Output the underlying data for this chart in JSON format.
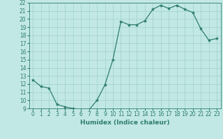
{
  "x": [
    0,
    1,
    2,
    3,
    4,
    5,
    6,
    7,
    8,
    9,
    10,
    11,
    12,
    13,
    14,
    15,
    16,
    17,
    18,
    19,
    20,
    21,
    22,
    23
  ],
  "y": [
    12.5,
    11.7,
    11.5,
    9.5,
    9.2,
    9.0,
    8.8,
    8.8,
    10.0,
    11.9,
    15.0,
    19.7,
    19.3,
    19.3,
    19.8,
    21.2,
    21.7,
    21.3,
    21.7,
    21.2,
    20.8,
    18.8,
    17.4,
    17.6
  ],
  "line_color": "#2e7d6e",
  "marker": "*",
  "marker_size": 3,
  "bg_color": "#c2e8e5",
  "grid_color": "#9ecfcc",
  "xlabel": "Humidex (Indice chaleur)",
  "xlim": [
    -0.5,
    23.5
  ],
  "ylim": [
    9,
    22
  ],
  "yticks": [
    9,
    10,
    11,
    12,
    13,
    14,
    15,
    16,
    17,
    18,
    19,
    20,
    21,
    22
  ],
  "xticks": [
    0,
    1,
    2,
    3,
    4,
    5,
    6,
    7,
    8,
    9,
    10,
    11,
    12,
    13,
    14,
    15,
    16,
    17,
    18,
    19,
    20,
    21,
    22,
    23
  ],
  "tick_fontsize": 5.5,
  "label_fontsize": 6.5
}
